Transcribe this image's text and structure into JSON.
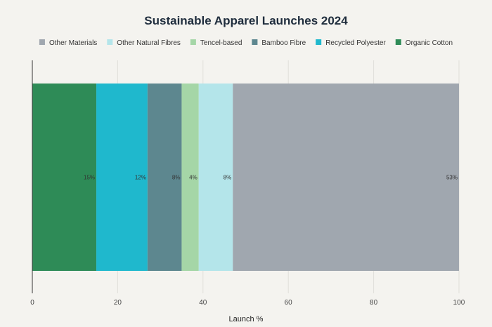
{
  "chart_data": {
    "type": "bar",
    "orientation": "horizontal-stacked",
    "title": "Sustainable Apparel Launches 2024",
    "xlabel": "Launch %",
    "ylabel": "",
    "xlim": [
      0,
      100
    ],
    "x_ticks": [
      "0",
      "20",
      "40",
      "60",
      "80",
      "100"
    ],
    "grid": true,
    "legend_position": "top",
    "legend_order": [
      "Other Materials",
      "Other Natural Fibres",
      "Tencel-based",
      "Bamboo Fibre",
      "Recycled Polyester",
      "Organic Cotton"
    ],
    "series": [
      {
        "name": "Organic Cotton",
        "value": 15,
        "label": "15%",
        "color": "#2e8b57"
      },
      {
        "name": "Recycled Polyester",
        "value": 12,
        "label": "12%",
        "color": "#1fb8cd"
      },
      {
        "name": "Bamboo Fibre",
        "value": 8,
        "label": "8%",
        "color": "#5d878f"
      },
      {
        "name": "Tencel-based",
        "value": 4,
        "label": "4%",
        "color": "#a5d6a7"
      },
      {
        "name": "Other Natural Fibres",
        "value": 8,
        "label": "8%",
        "color": "#b4e5ea"
      },
      {
        "name": "Other Materials",
        "value": 53,
        "label": "53%",
        "color": "#a0a7af"
      }
    ]
  }
}
